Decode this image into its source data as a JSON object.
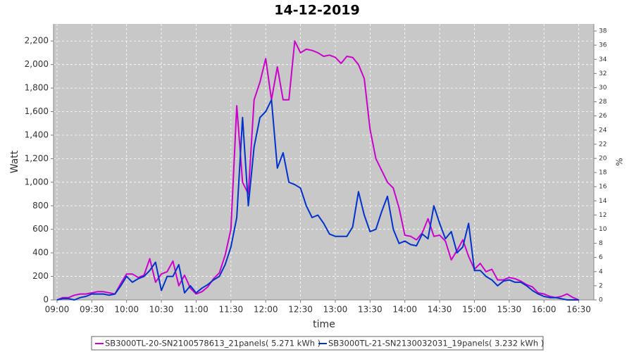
{
  "chart_data": {
    "type": "line",
    "title": "14-12-2019",
    "xlabel": "time",
    "ylabel": "Watt",
    "y2label": "%",
    "x": [
      "09:00",
      "09:05",
      "09:10",
      "09:15",
      "09:20",
      "09:25",
      "09:30",
      "09:35",
      "09:40",
      "09:45",
      "09:50",
      "09:55",
      "10:00",
      "10:05",
      "10:10",
      "10:15",
      "10:20",
      "10:25",
      "10:30",
      "10:35",
      "10:40",
      "10:45",
      "10:50",
      "10:55",
      "11:00",
      "11:05",
      "11:10",
      "11:15",
      "11:20",
      "11:25",
      "11:30",
      "11:35",
      "11:40",
      "11:45",
      "11:50",
      "11:55",
      "12:00",
      "12:05",
      "12:10",
      "12:15",
      "12:20",
      "12:25",
      "12:30",
      "12:35",
      "12:40",
      "12:45",
      "12:50",
      "12:55",
      "13:00",
      "13:05",
      "13:10",
      "13:15",
      "13:20",
      "13:25",
      "13:30",
      "13:35",
      "13:40",
      "13:45",
      "13:50",
      "13:55",
      "14:00",
      "14:05",
      "14:10",
      "14:15",
      "14:20",
      "14:25",
      "14:30",
      "14:35",
      "14:40",
      "14:45",
      "14:50",
      "14:55",
      "15:00",
      "15:05",
      "15:10",
      "15:15",
      "15:20",
      "15:25",
      "15:30",
      "15:35",
      "15:40",
      "15:45",
      "15:50",
      "15:55",
      "16:00",
      "16:05",
      "16:10",
      "16:15",
      "16:20",
      "16:25",
      "16:30"
    ],
    "series": [
      {
        "name": "SB3000TL-20-SN2100578613_21panels( 5.271 kWh )",
        "color": "#cc00cc",
        "values": [
          0,
          20,
          20,
          40,
          50,
          50,
          60,
          70,
          70,
          60,
          50,
          140,
          220,
          220,
          190,
          210,
          350,
          150,
          220,
          240,
          330,
          120,
          210,
          100,
          50,
          70,
          110,
          180,
          230,
          380,
          600,
          1650,
          1000,
          900,
          1700,
          1850,
          2050,
          1700,
          1980,
          1700,
          1700,
          2200,
          2100,
          2130,
          2120,
          2100,
          2070,
          2080,
          2060,
          2010,
          2070,
          2060,
          2000,
          1880,
          1450,
          1200,
          1100,
          1000,
          950,
          780,
          550,
          540,
          510,
          570,
          690,
          540,
          550,
          500,
          340,
          420,
          510,
          370,
          260,
          310,
          240,
          260,
          170,
          170,
          190,
          180,
          160,
          130,
          110,
          60,
          50,
          30,
          20,
          30,
          50,
          20,
          0
        ]
      },
      {
        "name": "SB3000TL-21-SN2130032031_19panels( 3.232 kWh )",
        "color": "#0033cc",
        "values": [
          0,
          10,
          10,
          0,
          20,
          30,
          50,
          50,
          50,
          40,
          50,
          120,
          200,
          150,
          180,
          200,
          250,
          320,
          80,
          200,
          200,
          300,
          60,
          120,
          60,
          100,
          130,
          170,
          200,
          300,
          450,
          700,
          1550,
          800,
          1300,
          1550,
          1600,
          1700,
          1120,
          1250,
          1000,
          980,
          950,
          800,
          700,
          720,
          650,
          560,
          540,
          540,
          540,
          620,
          920,
          720,
          580,
          600,
          750,
          880,
          600,
          480,
          500,
          470,
          460,
          560,
          520,
          800,
          650,
          520,
          580,
          400,
          450,
          650,
          250,
          250,
          200,
          170,
          120,
          160,
          170,
          150,
          150,
          120,
          80,
          50,
          30,
          20,
          20,
          10,
          0,
          0,
          0
        ]
      }
    ],
    "xlim": [
      "08:57",
      "16:43"
    ],
    "xticks": [
      "09:00",
      "09:30",
      "10:00",
      "10:30",
      "11:00",
      "11:30",
      "12:00",
      "12:30",
      "13:00",
      "13:30",
      "14:00",
      "14:30",
      "15:00",
      "15:30",
      "16:00",
      "16:30"
    ],
    "ylim": [
      0,
      2345
    ],
    "yticks": [
      0,
      200,
      400,
      600,
      800,
      {
        "value": 1000,
        "label": "1,000"
      },
      {
        "value": 1200,
        "label": "1,200"
      },
      {
        "value": 1400,
        "label": "1,400"
      },
      {
        "value": 1600,
        "label": "1,600"
      },
      {
        "value": 1800,
        "label": "1,800"
      },
      {
        "value": 2000,
        "label": "2,000"
      },
      {
        "value": 2200,
        "label": "2,200"
      }
    ],
    "y2lim": [
      0,
      39
    ],
    "y2ticks": [
      0,
      2,
      4,
      6,
      8,
      10,
      12,
      14,
      16,
      18,
      20,
      22,
      24,
      26,
      28,
      30,
      32,
      34,
      36,
      38
    ],
    "grid": true,
    "legend": "bottom"
  }
}
